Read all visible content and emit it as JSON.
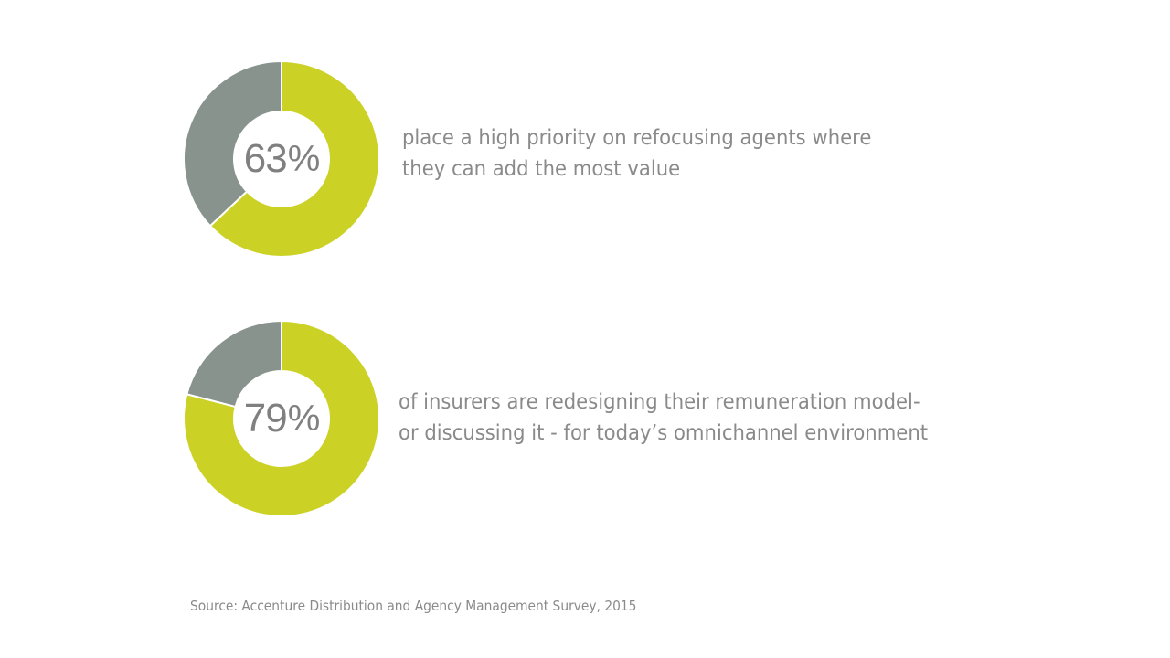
{
  "colors": {
    "primary": "#cbd225",
    "remainder": "#87938c",
    "text": "#8a8a8a",
    "center_text": "#808080"
  },
  "chart_data": [
    {
      "type": "pie",
      "donut": true,
      "value": 63,
      "display_number": "63",
      "display_unit": "%",
      "caption_lines": [
        "place a high priority on refocusing agents where",
        "they can add the most value"
      ]
    },
    {
      "type": "pie",
      "donut": true,
      "value": 79,
      "display_number": "79",
      "display_unit": "%",
      "caption_lines": [
        "of insurers are redesigning their remuneration model-",
        "or discussing it - for today’s omnichannel environment"
      ]
    }
  ],
  "source": "Source: Accenture Distribution and Agency Management Survey, 2015"
}
